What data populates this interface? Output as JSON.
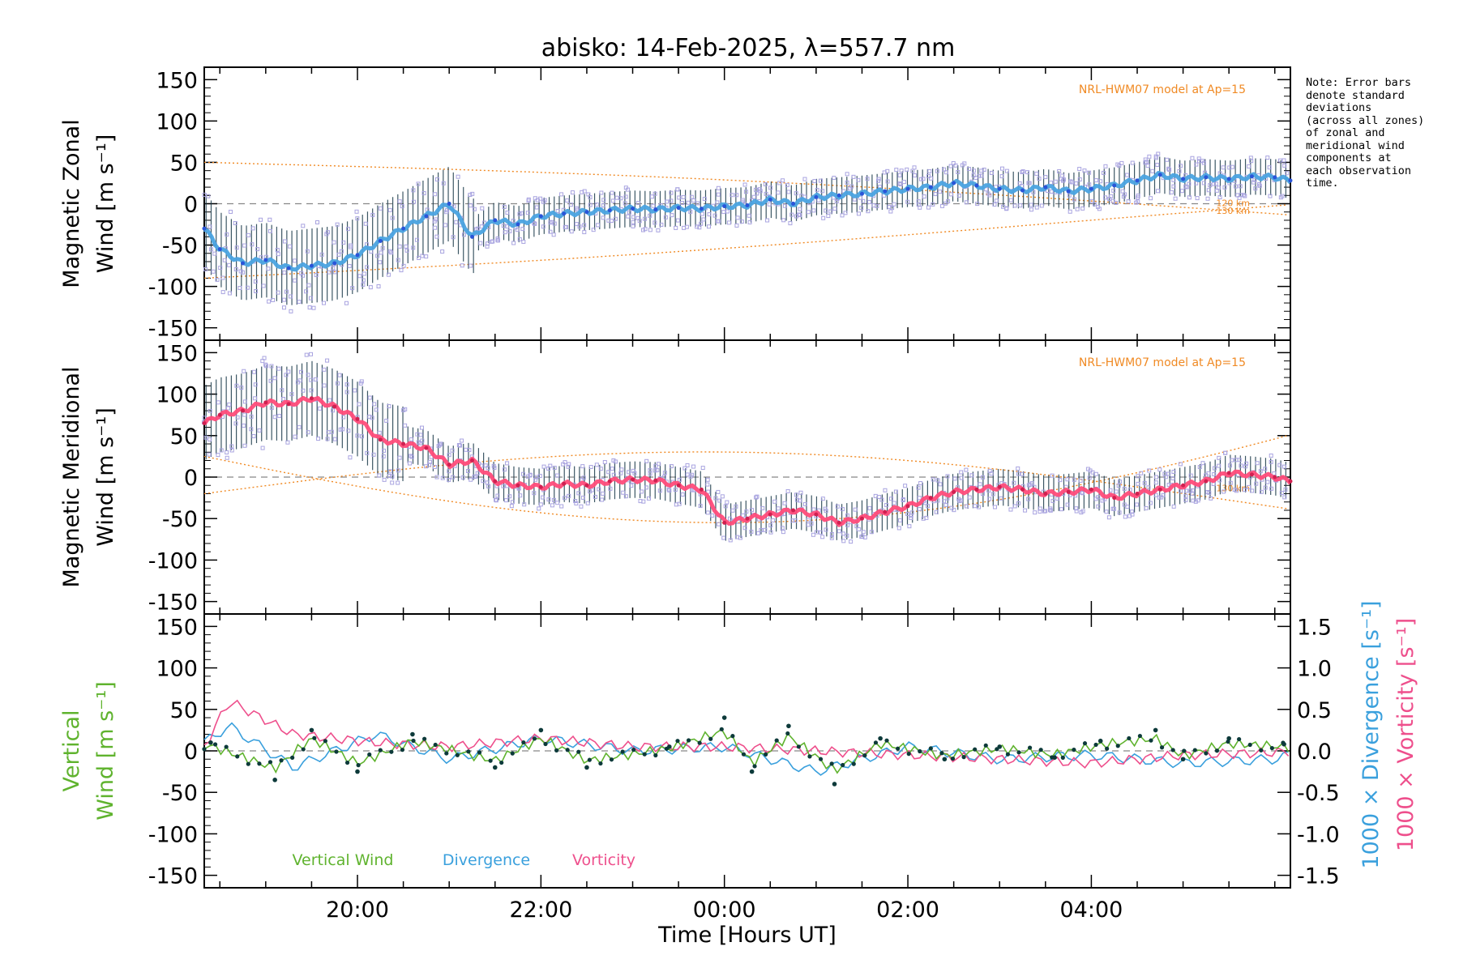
{
  "note_lines": [
    "Note: Error bars",
    "denote standard",
    "deviations",
    "(across all zones)",
    "of zonal and",
    "meridional wind",
    "components at",
    "each observation",
    "time."
  ],
  "colors": {
    "zonal": "#4aa3e0",
    "zonal_dark": "#2a55d8",
    "meridional": "#ff4c7a",
    "model": "#f08a24",
    "vertical": "#5fb32e",
    "divergence": "#3aa0dd",
    "vorticity": "#ee4f8c",
    "scatter": "#a9a4e0",
    "axis": "#000000",
    "zero_line": "#888888"
  },
  "chart_data": [
    {
      "type": "line",
      "title": "abisko: 14-Feb-2025, λ=557.7 nm",
      "ylabel_lines": [
        "Magnetic Zonal",
        "Wind [m s⁻¹]"
      ],
      "ylim": [
        -165,
        165
      ],
      "yticks": [
        -150,
        -100,
        -50,
        0,
        50,
        100,
        150
      ],
      "model_label": "NRL-HWM07 model at Ap=15",
      "model_curve_labels": [
        "120 km",
        "130 km"
      ],
      "x_range_hours": [
        18.33,
        30.17
      ],
      "xticks": [
        "20:00",
        "22:00",
        "00:00",
        "02:00",
        "04:00"
      ],
      "series": [
        {
          "x": [
            18.33,
            18.5,
            18.75,
            19.0,
            19.25,
            19.5,
            19.75,
            20.0,
            20.25,
            20.5,
            20.75,
            21.0,
            21.25,
            21.5,
            21.75,
            22.0,
            22.25,
            22.5,
            22.75,
            23.0,
            23.25,
            23.5,
            23.75,
            24.0,
            24.25,
            24.5,
            24.75,
            25.0,
            25.25,
            25.5,
            25.75,
            26.0,
            26.25,
            26.5,
            26.75,
            27.0,
            27.25,
            27.5,
            27.75,
            28.0,
            28.25,
            28.5,
            28.75,
            29.0,
            29.25,
            29.5,
            29.75,
            30.0,
            30.17
          ],
          "y": [
            -30,
            -55,
            -72,
            -68,
            -78,
            -75,
            -72,
            -62,
            -45,
            -30,
            -15,
            0,
            -40,
            -20,
            -25,
            -15,
            -12,
            -10,
            -8,
            -6,
            -7,
            -5,
            -6,
            -3,
            -2,
            5,
            0,
            8,
            10,
            12,
            15,
            18,
            20,
            25,
            22,
            18,
            16,
            20,
            15,
            18,
            22,
            28,
            35,
            30,
            32,
            30,
            33,
            32,
            28
          ]
        }
      ]
    },
    {
      "type": "line",
      "ylabel_lines": [
        "Magnetic Meridional",
        "Wind [m s⁻¹]"
      ],
      "ylim": [
        -165,
        165
      ],
      "yticks": [
        -150,
        -100,
        -50,
        0,
        50,
        100,
        150
      ],
      "model_label": "NRL-HWM07 model at Ap=15",
      "model_curve_labels": [
        "130 km"
      ],
      "series": [
        {
          "x": [
            18.33,
            18.5,
            18.75,
            19.0,
            19.25,
            19.5,
            19.75,
            20.0,
            20.25,
            20.5,
            20.75,
            21.0,
            21.25,
            21.5,
            21.75,
            22.0,
            22.25,
            22.5,
            22.75,
            23.0,
            23.25,
            23.5,
            23.75,
            24.0,
            24.25,
            24.5,
            24.75,
            25.0,
            25.25,
            25.5,
            25.75,
            26.0,
            26.25,
            26.5,
            26.75,
            27.0,
            27.25,
            27.5,
            27.75,
            28.0,
            28.25,
            28.5,
            28.75,
            29.0,
            29.25,
            29.5,
            29.75,
            30.0,
            30.17
          ],
          "y": [
            65,
            75,
            80,
            90,
            88,
            95,
            85,
            70,
            45,
            40,
            35,
            15,
            20,
            -5,
            -10,
            -12,
            -8,
            -10,
            -5,
            -3,
            -4,
            -10,
            -15,
            -55,
            -50,
            -45,
            -40,
            -45,
            -55,
            -50,
            -42,
            -35,
            -25,
            -18,
            -15,
            -12,
            -15,
            -20,
            -18,
            -15,
            -25,
            -20,
            -15,
            -10,
            -5,
            5,
            3,
            0,
            -5
          ]
        }
      ]
    },
    {
      "type": "line",
      "ylabel_lines": [
        "Vertical",
        "Wind [m s⁻¹]"
      ],
      "ylim": [
        -165,
        165
      ],
      "yticks": [
        -150,
        -100,
        -50,
        0,
        50,
        100,
        150
      ],
      "y2label_lines": [
        "1000 × Divergence [s⁻¹]",
        "1000 × Vorticity [s⁻¹]"
      ],
      "y2lim": [
        -1.65,
        1.65
      ],
      "y2ticks": [
        "-1.5",
        "-1.0",
        "-0.5",
        "0.0",
        "0.5",
        "1.0",
        "1.5"
      ],
      "xlabel": "Time [Hours UT]",
      "legend": [
        "Vertical Wind",
        "Divergence",
        "Vorticity"
      ],
      "series": [
        {
          "name": "Vertical Wind",
          "x": [
            18.4,
            19.1,
            19.5,
            20.0,
            20.6,
            21.5,
            22.0,
            22.5,
            23.4,
            24.0,
            24.3,
            24.7,
            25.2,
            25.7,
            26.4,
            27.0,
            27.6,
            28.1,
            28.7,
            29.0,
            29.5,
            30.1
          ],
          "y": [
            10,
            -35,
            25,
            -25,
            20,
            -20,
            25,
            -20,
            5,
            40,
            -25,
            30,
            -40,
            15,
            -10,
            5,
            -8,
            12,
            25,
            -10,
            15,
            8
          ]
        },
        {
          "name": "Divergence",
          "x": [
            18.33,
            18.6,
            19.3,
            20.2,
            21.0,
            22.0,
            23.0,
            24.0,
            25.0,
            26.0,
            27.0,
            28.0,
            29.0,
            30.0,
            30.17
          ],
          "y": [
            0.1,
            0.3,
            -0.2,
            0.2,
            -0.1,
            0.15,
            0.0,
            0.05,
            -0.25,
            0.05,
            -0.1,
            -0.05,
            -0.15,
            -0.1,
            -0.05
          ]
        },
        {
          "name": "Vorticity",
          "x": [
            18.33,
            18.6,
            19.3,
            20.2,
            21.0,
            22.0,
            23.0,
            24.0,
            25.0,
            26.0,
            27.0,
            28.0,
            29.0,
            30.0,
            30.17
          ],
          "y": [
            0.05,
            0.6,
            0.2,
            0.1,
            0.05,
            0.15,
            0.05,
            0.05,
            0.0,
            -0.05,
            -0.1,
            -0.15,
            -0.05,
            -0.02,
            0.0
          ]
        }
      ]
    }
  ]
}
